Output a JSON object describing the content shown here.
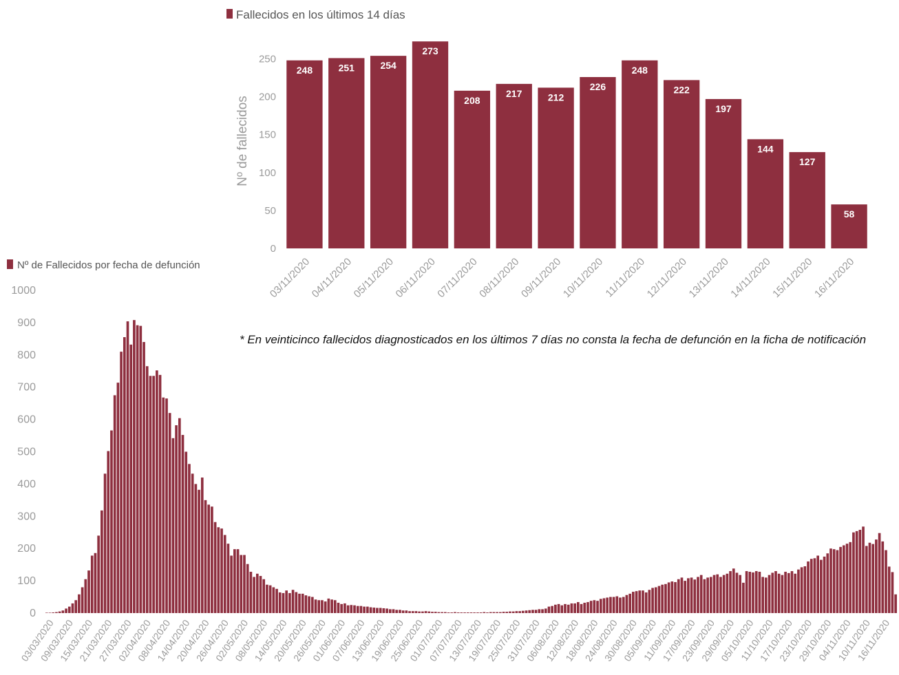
{
  "colors": {
    "bar": "#8e2f3f",
    "axis_text": "#9a9a9a",
    "bar_label": "#ffffff",
    "legend_text": "#555555"
  },
  "footnote": "* En veinticinco  fallecidos diagnosticados  en los últimos  7 días  no consta la fecha de defunción en la ficha de notificación",
  "chart_data": [
    {
      "type": "bar",
      "legend": "Fallecidos en los últimos 14 días",
      "legend_placement": "top-left",
      "ylabel": "Nº de fallecidos",
      "ylim": [
        0,
        275
      ],
      "yticks": [
        0,
        50,
        100,
        150,
        200,
        250
      ],
      "grid": false,
      "categories": [
        "03/11/2020",
        "04/11/2020",
        "05/11/2020",
        "06/11/2020",
        "07/11/2020",
        "08/11/2020",
        "09/11/2020",
        "10/11/2020",
        "11/11/2020",
        "12/11/2020",
        "13/11/2020",
        "14/11/2020",
        "15/11/2020",
        "16/11/2020"
      ],
      "values": [
        248,
        251,
        254,
        273,
        208,
        217,
        212,
        226,
        248,
        222,
        197,
        144,
        127,
        58
      ]
    },
    {
      "type": "bar",
      "legend": "Nº de Fallecidos por fecha de defunción",
      "legend_placement": "top-left",
      "ylim": [
        0,
        1000
      ],
      "yticks": [
        0,
        100,
        200,
        300,
        400,
        500,
        600,
        700,
        800,
        900,
        1000
      ],
      "grid": false,
      "x_start": "03/03/2020",
      "x_end": "16/11/2020",
      "tick_labels": [
        "03/03/2020",
        "09/03/2020",
        "15/03/2020",
        "21/03/2020",
        "27/03/2020",
        "02/04/2020",
        "08/04/2020",
        "14/04/2020",
        "20/04/2020",
        "26/04/2020",
        "02/05/2020",
        "08/05/2020",
        "14/05/2020",
        "20/05/2020",
        "26/05/2020",
        "01/06/2020",
        "07/06/2020",
        "13/06/2020",
        "19/06/2020",
        "25/06/2020",
        "01/07/2020",
        "07/07/2020",
        "13/07/2020",
        "19/07/2020",
        "25/07/2020",
        "31/07/2020",
        "06/08/2020",
        "12/08/2020",
        "18/08/2020",
        "24/08/2020",
        "30/08/2020",
        "05/09/2020",
        "11/09/2020",
        "17/09/2020",
        "23/09/2020",
        "29/09/2020",
        "05/10/2020",
        "11/10/2020",
        "17/10/2020",
        "23/10/2020",
        "29/10/2020",
        "04/11/2020",
        "10/11/2020",
        "16/11/2020"
      ],
      "values": [
        1,
        1,
        2,
        3,
        5,
        8,
        14,
        20,
        30,
        40,
        58,
        80,
        105,
        132,
        178,
        186,
        240,
        318,
        432,
        502,
        566,
        675,
        714,
        810,
        855,
        904,
        832,
        908,
        892,
        890,
        840,
        765,
        735,
        735,
        752,
        738,
        668,
        665,
        620,
        542,
        582,
        604,
        552,
        500,
        462,
        432,
        400,
        382,
        420,
        350,
        336,
        330,
        282,
        266,
        262,
        242,
        215,
        178,
        198,
        198,
        180,
        180,
        152,
        128,
        112,
        122,
        115,
        105,
        88,
        86,
        80,
        75,
        64,
        62,
        70,
        62,
        72,
        65,
        60,
        60,
        55,
        52,
        50,
        42,
        40,
        40,
        36,
        45,
        42,
        40,
        32,
        28,
        30,
        24,
        25,
        24,
        22,
        22,
        20,
        20,
        18,
        17,
        16,
        16,
        15,
        14,
        12,
        12,
        10,
        10,
        8,
        8,
        6,
        6,
        6,
        5,
        5,
        6,
        5,
        4,
        4,
        3,
        3,
        3,
        2,
        2,
        3,
        2,
        2,
        2,
        2,
        2,
        2,
        2,
        2,
        3,
        2,
        3,
        3,
        3,
        3,
        4,
        4,
        5,
        5,
        6,
        6,
        7,
        8,
        9,
        10,
        10,
        12,
        12,
        14,
        20,
        22,
        26,
        28,
        24,
        28,
        26,
        30,
        30,
        34,
        28,
        32,
        34,
        38,
        40,
        38,
        44,
        46,
        48,
        50,
        50,
        52,
        48,
        50,
        56,
        60,
        66,
        68,
        70,
        70,
        64,
        72,
        78,
        80,
        84,
        88,
        90,
        95,
        98,
        96,
        105,
        110,
        100,
        108,
        110,
        104,
        112,
        118,
        105,
        110,
        112,
        118,
        120,
        112,
        118,
        122,
        130,
        138,
        125,
        118,
        94,
        130,
        128,
        126,
        130,
        128,
        112,
        110,
        118,
        125,
        130,
        122,
        118,
        128,
        124,
        130,
        122,
        135,
        142,
        145,
        160,
        168,
        170,
        178,
        165,
        175,
        185,
        200,
        198,
        195,
        205,
        210,
        215,
        220,
        250,
        254,
        258,
        268,
        208,
        218,
        214,
        228,
        248,
        222,
        195,
        144,
        127,
        58
      ]
    }
  ]
}
